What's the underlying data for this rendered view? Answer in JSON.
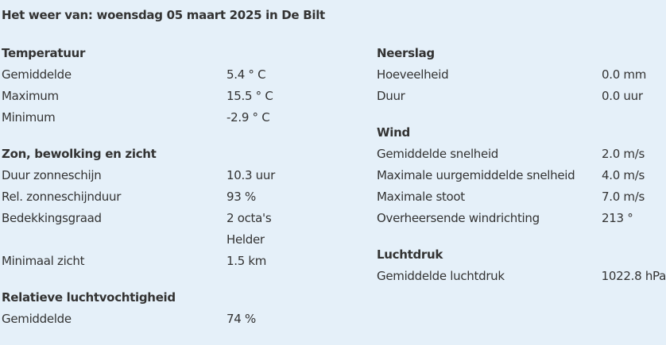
{
  "title": "Het weer van: woensdag 05 maart 2025 in De Bilt",
  "left": [
    {
      "heading": "Temperatuur",
      "rows": [
        [
          "Gemiddelde",
          "5.4 ° C"
        ],
        [
          "Maximum",
          "15.5 ° C"
        ],
        [
          "Minimum",
          "-2.9 ° C"
        ]
      ]
    },
    {
      "heading": "Zon, bewolking en zicht",
      "rows": [
        [
          "Duur zonneschijn",
          "10.3 uur"
        ],
        [
          "Rel. zonneschijnduur",
          "93 %"
        ],
        [
          "Bedekkingsgraad",
          "2 octa's"
        ],
        [
          "",
          "Helder"
        ],
        [
          "Minimaal zicht",
          "1.5 km"
        ]
      ]
    },
    {
      "heading": "Relatieve luchtvochtigheid",
      "rows": [
        [
          "Gemiddelde",
          "74 %"
        ]
      ]
    }
  ],
  "right": [
    {
      "heading": "Neerslag",
      "rows": [
        [
          "Hoeveelheid",
          "0.0 mm"
        ],
        [
          "Duur",
          "0.0 uur"
        ]
      ]
    },
    {
      "heading": "Wind",
      "rows": [
        [
          "Gemiddelde snelheid",
          "2.0 m/s"
        ],
        [
          "Maximale uurgemiddelde snelheid",
          "4.0 m/s"
        ],
        [
          "Maximale stoot",
          "7.0 m/s"
        ],
        [
          "Overheersende windrichting",
          "213 °"
        ]
      ]
    },
    {
      "heading": "Luchtdruk",
      "rows": [
        [
          "Gemiddelde luchtdruk",
          "1022.8 hPa"
        ]
      ]
    }
  ]
}
